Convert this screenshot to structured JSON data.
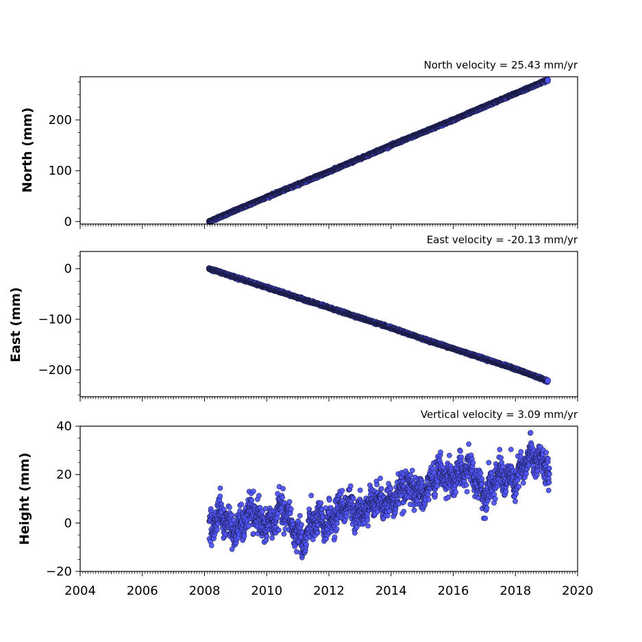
{
  "chart_data": [
    {
      "type": "scatter",
      "title": "North velocity = 25.43 mm/yr",
      "xlabel": "",
      "ylabel": "North (mm)",
      "xlim": [
        2004,
        2020
      ],
      "ylim": [
        -5,
        285
      ],
      "yticks": [
        0,
        100,
        200
      ],
      "grid": false,
      "marker_color": "#5055ff",
      "edge_color": "#1a1a40",
      "series": [
        {
          "x": [
            2008.15,
            2009,
            2010,
            2011,
            2012,
            2013,
            2014,
            2015,
            2016,
            2017,
            2018,
            2019.05
          ],
          "y": [
            0,
            22,
            48,
            73,
            98,
            124,
            150,
            175,
            200,
            226,
            252,
            279
          ]
        }
      ]
    },
    {
      "type": "scatter",
      "title": "East velocity = -20.13 mm/yr",
      "xlabel": "",
      "ylabel": "East (mm)",
      "xlim": [
        2004,
        2020
      ],
      "ylim": [
        -253,
        34
      ],
      "yticks": [
        0,
        -100,
        -200
      ],
      "grid": false,
      "marker_color": "#5055ff",
      "edge_color": "#1a1a40",
      "series": [
        {
          "x": [
            2008.15,
            2009,
            2010,
            2011,
            2012,
            2013,
            2014,
            2015,
            2016,
            2017,
            2018,
            2019.05
          ],
          "y": [
            0,
            -17,
            -37,
            -57,
            -77,
            -97,
            -117,
            -138,
            -158,
            -178,
            -198,
            -222
          ]
        }
      ]
    },
    {
      "type": "scatter",
      "title": "Vertical velocity = 3.09 mm/yr",
      "xlabel": "",
      "ylabel": "Height (mm)",
      "xlim": [
        2004,
        2020
      ],
      "ylim": [
        -20,
        40
      ],
      "yticks": [
        -20,
        0,
        20,
        40
      ],
      "xticks": [
        2004,
        2006,
        2008,
        2010,
        2012,
        2014,
        2016,
        2018,
        2020
      ],
      "grid": false,
      "marker_color": "#5055ff",
      "edge_color": "#1a1a40",
      "series": [
        {
          "x": [
            2008.15,
            2008.5,
            2009,
            2009.5,
            2010,
            2010.5,
            2011,
            2011.2,
            2011.5,
            2012,
            2012.5,
            2013,
            2013.5,
            2014,
            2014.5,
            2015,
            2015.5,
            2016,
            2016.5,
            2017,
            2017.5,
            2018,
            2018.5,
            2019,
            2019.1
          ],
          "y": [
            -3,
            4,
            -4,
            5,
            -2,
            6,
            -5,
            -8,
            1,
            0,
            8,
            4,
            10,
            8,
            16,
            11,
            21,
            18,
            23,
            12,
            20,
            17,
            28,
            24,
            16
          ]
        }
      ]
    }
  ]
}
